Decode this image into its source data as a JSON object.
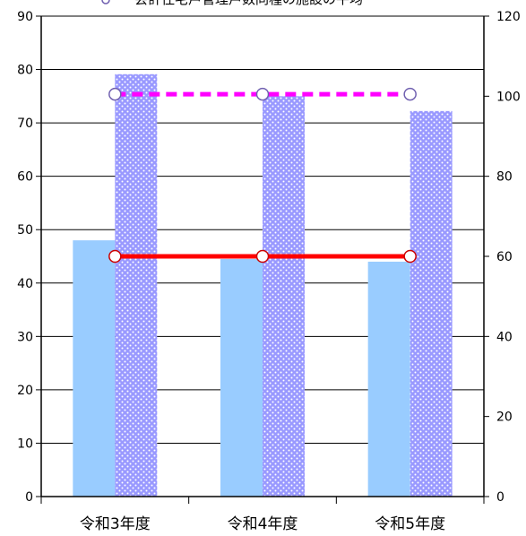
{
  "chart_data": {
    "type": "bar",
    "categories": [
      "令和3年度",
      "令和4年度",
      "令和5年度"
    ],
    "series": [
      {
        "kind": "bar",
        "axis": "left",
        "values": [
          48,
          44.5,
          44
        ],
        "color": "#99ccff"
      },
      {
        "kind": "bar",
        "axis": "right",
        "values": [
          105.5,
          100,
          96.3
        ],
        "color": "#9999ff",
        "pattern": "white-dots"
      },
      {
        "kind": "line",
        "axis": "left",
        "values": [
          45,
          45,
          45
        ],
        "color": "#ff0000",
        "dash": "solid"
      },
      {
        "kind": "line",
        "axis": "right",
        "values": [
          100.5,
          100.5,
          100.5
        ],
        "color": "#ff00ff",
        "dash": "dashed"
      }
    ],
    "y_left": {
      "min": 0,
      "max": 90,
      "step": 10,
      "ticks": [
        "0",
        "10",
        "20",
        "30",
        "40",
        "50",
        "60",
        "70",
        "80",
        "90"
      ]
    },
    "y_right": {
      "min": 0,
      "max": 120,
      "step": 20,
      "ticks": [
        "0",
        "20",
        "40",
        "60",
        "80",
        "100",
        "120"
      ]
    },
    "legend": {
      "text": "会計住宅戸管理戸数同種の施設の平均",
      "position": "top"
    },
    "grid": true
  }
}
